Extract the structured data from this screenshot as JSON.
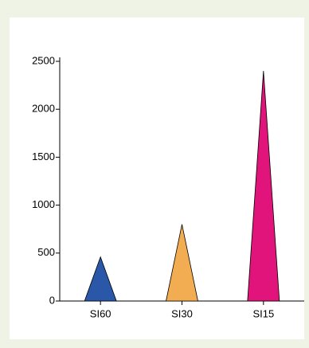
{
  "chart_data": {
    "type": "triangle",
    "categories": [
      "SI60",
      "SI30",
      "SI15"
    ],
    "values": [
      460,
      800,
      2400
    ],
    "colors": [
      "#2a57a8",
      "#f2ad52",
      "#e0147a"
    ],
    "ylim": [
      0,
      2500
    ],
    "yticks": [
      0,
      500,
      1000,
      1500,
      2000,
      2500
    ],
    "grid": false
  }
}
